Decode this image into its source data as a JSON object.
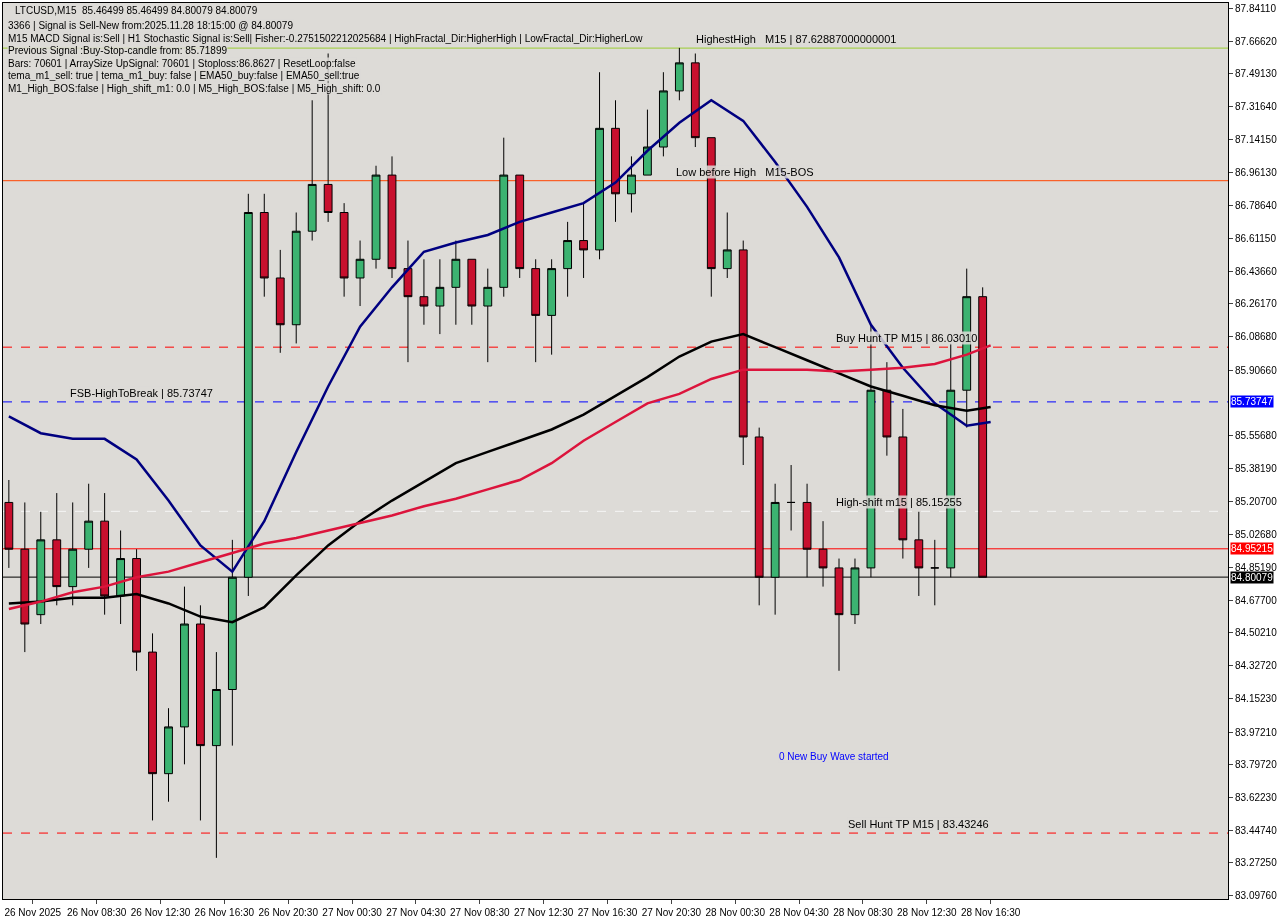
{
  "chart_data": {
    "type": "candlestick",
    "title": "LTCUSD,M15  85.46499 85.46499 84.80079 84.80079",
    "annotations": [
      "3366 | Signal is Sell-New from:2025.11.28 18:15:00 @ 84.80079",
      "M15 MACD Signal is:Sell | H1 Stochastic Signal is:Sell| Fisher:-0.2751502212025684 | HighFractal_Dir:HigherHigh | LowFractal_Dir:HigherLow",
      "Previous Signal :Buy-Stop-candle from: 85.71899",
      "Bars: 70601 | ArraySize UpSignal: 70601 | Stoploss:86.8627 | ResetLoop:false",
      "tema_m1_sell: true | tema_m1_buy: false | EMA50_buy:false | EMA50_sell:true",
      "M1_High_BOS:false | High_shift_m1: 0.0 | M5_High_BOS:false | M5_High_shift: 0.0",
      {
        "text": "FSB-HighToBreak | 85.73747",
        "x": "2025-11-26T06:45",
        "y": 85.73747
      },
      {
        "text": "HighestHigh   M15 | 87.62887000000001",
        "x": "2025-11-27T22:00",
        "y": 87.62887
      },
      {
        "text": "Low before High   M15-BOS",
        "x": "2025-11-27T20:45",
        "y": 86.92
      },
      {
        "text": "Buy Hunt TP M15 | 86.03010",
        "x": "2025-11-28T06:45",
        "y": 86.0301
      },
      {
        "text": "High-shift m15 | 85.15255",
        "x": "2025-11-28T06:45",
        "y": 85.15255
      },
      "0 New Buy Wave started",
      {
        "text": "Sell Hunt TP M15 | 83.43246",
        "x": "2025-11-28T07:30",
        "y": 83.43246
      }
    ],
    "x": [
      "2025-11-26T03:00",
      "2025-11-26T04:00",
      "2025-11-26T05:00",
      "2025-11-26T06:00",
      "2025-11-26T07:00",
      "2025-11-26T08:00",
      "2025-11-26T09:00",
      "2025-11-26T10:00",
      "2025-11-26T11:00",
      "2025-11-26T12:00",
      "2025-11-26T13:00",
      "2025-11-26T14:00",
      "2025-11-26T15:00",
      "2025-11-26T16:00",
      "2025-11-26T17:00",
      "2025-11-26T18:00",
      "2025-11-26T19:00",
      "2025-11-26T20:00",
      "2025-11-26T21:00",
      "2025-11-26T22:00",
      "2025-11-26T23:00",
      "2025-11-27T00:00",
      "2025-11-27T01:00",
      "2025-11-27T02:00",
      "2025-11-27T03:00",
      "2025-11-27T04:00",
      "2025-11-27T05:00",
      "2025-11-27T06:00",
      "2025-11-27T07:00",
      "2025-11-27T08:00",
      "2025-11-27T09:00",
      "2025-11-27T10:00",
      "2025-11-27T11:00",
      "2025-11-27T12:00",
      "2025-11-27T13:00",
      "2025-11-27T14:00",
      "2025-11-27T15:00",
      "2025-11-27T16:00",
      "2025-11-27T17:00",
      "2025-11-27T18:00",
      "2025-11-27T19:00",
      "2025-11-27T20:00",
      "2025-11-27T21:00",
      "2025-11-27T22:00",
      "2025-11-27T23:00",
      "2025-11-28T00:00",
      "2025-11-28T01:00",
      "2025-11-28T02:00",
      "2025-11-28T03:00",
      "2025-11-28T04:00",
      "2025-11-28T05:00",
      "2025-11-28T06:00",
      "2025-11-28T07:00",
      "2025-11-28T08:00",
      "2025-11-28T09:00",
      "2025-11-28T10:00",
      "2025-11-28T11:00",
      "2025-11-28T12:00",
      "2025-11-28T13:00",
      "2025-11-28T14:00",
      "2025-11-28T15:00",
      "2025-11-28T16:00"
    ],
    "ohlc": [
      [
        85.2,
        85.32,
        84.85,
        84.95
      ],
      [
        84.95,
        85.2,
        84.4,
        84.55
      ],
      [
        84.6,
        85.15,
        84.55,
        85.0
      ],
      [
        85.0,
        85.25,
        84.65,
        84.75
      ],
      [
        84.75,
        85.2,
        84.65,
        84.95
      ],
      [
        84.95,
        85.3,
        84.85,
        85.1
      ],
      [
        85.1,
        85.25,
        84.6,
        84.7
      ],
      [
        84.7,
        85.05,
        84.55,
        84.9
      ],
      [
        84.9,
        84.95,
        84.3,
        84.4
      ],
      [
        84.4,
        84.5,
        83.5,
        83.75
      ],
      [
        83.75,
        84.1,
        83.6,
        84.0
      ],
      [
        84.0,
        84.75,
        83.8,
        84.55
      ],
      [
        84.55,
        84.65,
        83.5,
        83.9
      ],
      [
        83.9,
        84.4,
        83.3,
        84.2
      ],
      [
        84.2,
        85.0,
        83.9,
        84.8
      ],
      [
        84.8,
        86.85,
        84.7,
        86.75
      ],
      [
        86.75,
        86.85,
        86.3,
        86.4
      ],
      [
        86.4,
        86.55,
        86.0,
        86.15
      ],
      [
        86.15,
        86.75,
        86.05,
        86.65
      ],
      [
        86.65,
        87.35,
        86.6,
        86.9
      ],
      [
        86.9,
        87.6,
        86.7,
        86.75
      ],
      [
        86.75,
        86.8,
        86.3,
        86.4
      ],
      [
        86.4,
        86.6,
        86.25,
        86.5
      ],
      [
        86.5,
        87.0,
        86.45,
        86.95
      ],
      [
        86.95,
        87.05,
        86.4,
        86.45
      ],
      [
        86.45,
        86.6,
        85.95,
        86.3
      ],
      [
        86.3,
        86.5,
        86.15,
        86.25
      ],
      [
        86.25,
        86.5,
        86.1,
        86.35
      ],
      [
        86.35,
        86.6,
        86.15,
        86.5
      ],
      [
        86.5,
        86.5,
        86.15,
        86.25
      ],
      [
        86.25,
        86.45,
        85.95,
        86.35
      ],
      [
        86.35,
        87.15,
        86.3,
        86.95
      ],
      [
        86.95,
        86.95,
        86.4,
        86.45
      ],
      [
        86.45,
        86.5,
        85.95,
        86.2
      ],
      [
        86.2,
        86.5,
        85.99,
        86.45
      ],
      [
        86.45,
        86.7,
        86.3,
        86.6
      ],
      [
        86.6,
        86.8,
        86.4,
        86.55
      ],
      [
        86.55,
        87.5,
        86.5,
        87.2
      ],
      [
        87.2,
        87.35,
        86.7,
        86.85
      ],
      [
        86.85,
        87.05,
        86.75,
        86.95
      ],
      [
        86.95,
        87.3,
        86.95,
        87.1
      ],
      [
        87.1,
        87.5,
        87.05,
        87.4
      ],
      [
        87.4,
        87.63,
        87.35,
        87.55
      ],
      [
        87.55,
        87.6,
        87.1,
        87.15
      ],
      [
        87.15,
        87.15,
        86.3,
        86.45
      ],
      [
        86.45,
        86.75,
        86.4,
        86.55
      ],
      [
        86.55,
        86.6,
        85.4,
        85.55
      ],
      [
        85.55,
        85.6,
        84.65,
        84.8
      ],
      [
        84.8,
        85.3,
        84.6,
        85.2
      ],
      [
        85.2,
        85.4,
        85.05,
        85.2
      ],
      [
        85.2,
        85.3,
        84.8,
        84.95
      ],
      [
        84.95,
        85.1,
        84.75,
        84.85
      ],
      [
        84.85,
        84.9,
        84.3,
        84.6
      ],
      [
        84.6,
        84.9,
        84.55,
        84.85
      ],
      [
        84.85,
        86.15,
        84.8,
        85.8
      ],
      [
        85.8,
        85.95,
        85.45,
        85.55
      ],
      [
        85.55,
        85.7,
        84.9,
        85.0
      ],
      [
        85.0,
        85.15,
        84.7,
        84.85
      ],
      [
        84.85,
        85.0,
        84.65,
        84.85
      ],
      [
        84.85,
        86.05,
        84.8,
        85.8
      ],
      [
        85.8,
        86.45,
        85.6,
        86.3
      ],
      [
        86.3,
        86.35,
        84.8,
        84.8
      ]
    ],
    "series": [
      {
        "type": "line",
        "color": "#000080",
        "x": [
          "2025-11-26T03:00",
          "2025-11-26T05:00",
          "2025-11-26T07:00",
          "2025-11-26T09:00",
          "2025-11-26T11:00",
          "2025-11-26T13:00",
          "2025-11-26T15:00",
          "2025-11-26T17:00",
          "2025-11-26T19:00",
          "2025-11-26T21:00",
          "2025-11-26T23:00",
          "2025-11-27T01:00",
          "2025-11-27T03:00",
          "2025-11-27T05:00",
          "2025-11-27T07:00",
          "2025-11-27T09:00",
          "2025-11-27T11:00",
          "2025-11-27T13:00",
          "2025-11-27T15:00",
          "2025-11-27T17:00",
          "2025-11-27T19:00",
          "2025-11-27T21:00",
          "2025-11-27T23:00",
          "2025-11-28T01:00",
          "2025-11-28T03:00",
          "2025-11-28T05:00",
          "2025-11-28T07:00",
          "2025-11-28T09:00",
          "2025-11-28T11:00",
          "2025-11-28T13:00",
          "2025-11-28T15:00",
          "2025-11-28T16:30"
        ],
        "values": [
          85.66,
          85.57,
          85.54,
          85.54,
          85.43,
          85.21,
          84.97,
          84.83,
          85.1,
          85.47,
          85.82,
          86.14,
          86.35,
          86.54,
          86.59,
          86.63,
          86.7,
          86.75,
          86.8,
          86.91,
          87.08,
          87.23,
          87.35,
          87.24,
          87.02,
          86.78,
          86.51,
          86.15,
          85.92,
          85.73,
          85.61,
          85.63
        ]
      },
      {
        "type": "line",
        "color": "#000000",
        "x": [
          "2025-11-26T03:00",
          "2025-11-26T05:00",
          "2025-11-26T07:00",
          "2025-11-26T09:00",
          "2025-11-26T11:00",
          "2025-11-26T13:00",
          "2025-11-26T15:00",
          "2025-11-26T17:00",
          "2025-11-26T19:00",
          "2025-11-26T21:00",
          "2025-11-26T23:00",
          "2025-11-27T01:00",
          "2025-11-27T03:00",
          "2025-11-27T05:00",
          "2025-11-27T07:00",
          "2025-11-27T09:00",
          "2025-11-27T11:00",
          "2025-11-27T13:00",
          "2025-11-27T15:00",
          "2025-11-27T17:00",
          "2025-11-27T19:00",
          "2025-11-27T21:00",
          "2025-11-27T23:00",
          "2025-11-28T01:00",
          "2025-11-28T03:00",
          "2025-11-28T05:00",
          "2025-11-28T07:00",
          "2025-11-28T09:00",
          "2025-11-28T11:00",
          "2025-11-28T13:00",
          "2025-11-28T15:00",
          "2025-11-28T16:30"
        ],
        "values": [
          84.66,
          84.67,
          84.69,
          84.69,
          84.71,
          84.66,
          84.59,
          84.56,
          84.64,
          84.81,
          84.97,
          85.1,
          85.21,
          85.31,
          85.41,
          85.47,
          85.53,
          85.59,
          85.67,
          85.77,
          85.87,
          85.98,
          86.06,
          86.1,
          86.03,
          85.96,
          85.89,
          85.82,
          85.77,
          85.72,
          85.69,
          85.71
        ]
      },
      {
        "type": "line",
        "color": "#dc143c",
        "x": [
          "2025-11-26T03:00",
          "2025-11-26T05:00",
          "2025-11-26T07:00",
          "2025-11-26T09:00",
          "2025-11-26T11:00",
          "2025-11-26T13:00",
          "2025-11-26T15:00",
          "2025-11-26T17:00",
          "2025-11-26T19:00",
          "2025-11-26T21:00",
          "2025-11-26T23:00",
          "2025-11-27T01:00",
          "2025-11-27T03:00",
          "2025-11-27T05:00",
          "2025-11-27T07:00",
          "2025-11-27T09:00",
          "2025-11-27T11:00",
          "2025-11-27T13:00",
          "2025-11-27T15:00",
          "2025-11-27T17:00",
          "2025-11-27T19:00",
          "2025-11-27T21:00",
          "2025-11-27T23:00",
          "2025-11-28T01:00",
          "2025-11-28T03:00",
          "2025-11-28T05:00",
          "2025-11-28T07:00",
          "2025-11-28T09:00",
          "2025-11-28T11:00",
          "2025-11-28T13:00",
          "2025-11-28T15:00",
          "2025-11-28T16:30"
        ],
        "values": [
          84.63,
          84.67,
          84.72,
          84.75,
          84.8,
          84.83,
          84.88,
          84.93,
          84.98,
          85.01,
          85.05,
          85.09,
          85.13,
          85.18,
          85.22,
          85.27,
          85.32,
          85.41,
          85.53,
          85.63,
          85.73,
          85.78,
          85.86,
          85.91,
          85.91,
          85.91,
          85.9,
          85.91,
          85.92,
          85.94,
          85.99,
          86.04
        ]
      }
    ],
    "xlim": [
      "2025-11-26T02:38",
      "2025-11-29T07:22"
    ],
    "xticks": [
      {
        "value": "2025-11-26T04:30",
        "label": "26 Nov 2025"
      },
      {
        "value": "2025-11-26T08:30",
        "label": "26 Nov 08:30"
      },
      {
        "value": "2025-11-26T12:30",
        "label": "26 Nov 12:30"
      },
      {
        "value": "2025-11-26T16:30",
        "label": "26 Nov 16:30"
      },
      {
        "value": "2025-11-26T20:30",
        "label": "26 Nov 20:30"
      },
      {
        "value": "2025-11-27T00:30",
        "label": "27 Nov 00:30"
      },
      {
        "value": "2025-11-27T04:30",
        "label": "27 Nov 04:30"
      },
      {
        "value": "2025-11-27T08:30",
        "label": "27 Nov 08:30"
      },
      {
        "value": "2025-11-27T12:30",
        "label": "27 Nov 12:30"
      },
      {
        "value": "2025-11-27T16:30",
        "label": "27 Nov 16:30"
      },
      {
        "value": "2025-11-27T20:30",
        "label": "27 Nov 20:30"
      },
      {
        "value": "2025-11-28T00:30",
        "label": "28 Nov 00:30"
      },
      {
        "value": "2025-11-28T04:30",
        "label": "28 Nov 04:30"
      },
      {
        "value": "2025-11-28T08:30",
        "label": "28 Nov 08:30"
      },
      {
        "value": "2025-11-28T12:30",
        "label": "28 Nov 12:30"
      },
      {
        "value": "2025-11-28T16:30",
        "label": "28 Nov 16:30"
      }
    ],
    "ylim": [
      83.08,
      87.87
    ],
    "yticks": [
      {
        "value": 87.8411,
        "label": "87.84110"
      },
      {
        "value": 87.6662,
        "label": "87.66620"
      },
      {
        "value": 87.4913,
        "label": "87.49130"
      },
      {
        "value": 87.3164,
        "label": "87.31640"
      },
      {
        "value": 87.1415,
        "label": "87.14150"
      },
      {
        "value": 86.9613,
        "label": "86.96130"
      },
      {
        "value": 86.7864,
        "label": "86.78640"
      },
      {
        "value": 86.6115,
        "label": "86.61150"
      },
      {
        "value": 86.4366,
        "label": "86.43660"
      },
      {
        "value": 86.2617,
        "label": "86.26170"
      },
      {
        "value": 86.0868,
        "label": "86.08680"
      },
      {
        "value": 85.9066,
        "label": "85.90660"
      },
      {
        "value": 85.5568,
        "label": "85.55680"
      },
      {
        "value": 85.3819,
        "label": "85.38190"
      },
      {
        "value": 85.207,
        "label": "85.20700"
      },
      {
        "value": 85.0268,
        "label": "85.02680"
      },
      {
        "value": 84.8519,
        "label": "84.85190"
      },
      {
        "value": 84.677,
        "label": "84.67700"
      },
      {
        "value": 84.5021,
        "label": "84.50210"
      },
      {
        "value": 84.3272,
        "label": "84.32720"
      },
      {
        "value": 84.1523,
        "label": "84.15230"
      },
      {
        "value": 83.9721,
        "label": "83.97210"
      },
      {
        "value": 83.7972,
        "label": "83.79720"
      },
      {
        "value": 83.6223,
        "label": "83.62230"
      },
      {
        "value": 83.4474,
        "label": "83.44740"
      },
      {
        "value": 83.2725,
        "label": "83.27250"
      },
      {
        "value": 83.0976,
        "label": "83.09760"
      }
    ],
    "ref_lines": [
      {
        "axis": "y",
        "value": 85.73747,
        "label": "85.73747",
        "color": "#0000ff",
        "line_style": "dashed"
      },
      {
        "axis": "y",
        "value": 84.95215,
        "label": "84.95215",
        "color": "#ff0000",
        "line_style": "solid"
      },
      {
        "axis": "y",
        "value": 84.80079,
        "label": "84.80079",
        "color": "#000000",
        "line_style": "solid"
      },
      {
        "axis": "y",
        "value": 86.0301,
        "color": "#ff0000",
        "line_style": "dashed"
      },
      {
        "axis": "y",
        "value": 83.43246,
        "color": "#ff0000",
        "line_style": "dashed"
      },
      {
        "axis": "y",
        "value": 87.62887,
        "color": "#9acd32",
        "line_style": "solid"
      },
      {
        "axis": "y",
        "value": 86.92,
        "color": "#ff4500",
        "line_style": "solid"
      },
      {
        "axis": "y",
        "value": 85.15255,
        "color": "#f5f5f5",
        "line_style": "dashed"
      }
    ],
    "grid": false
  }
}
